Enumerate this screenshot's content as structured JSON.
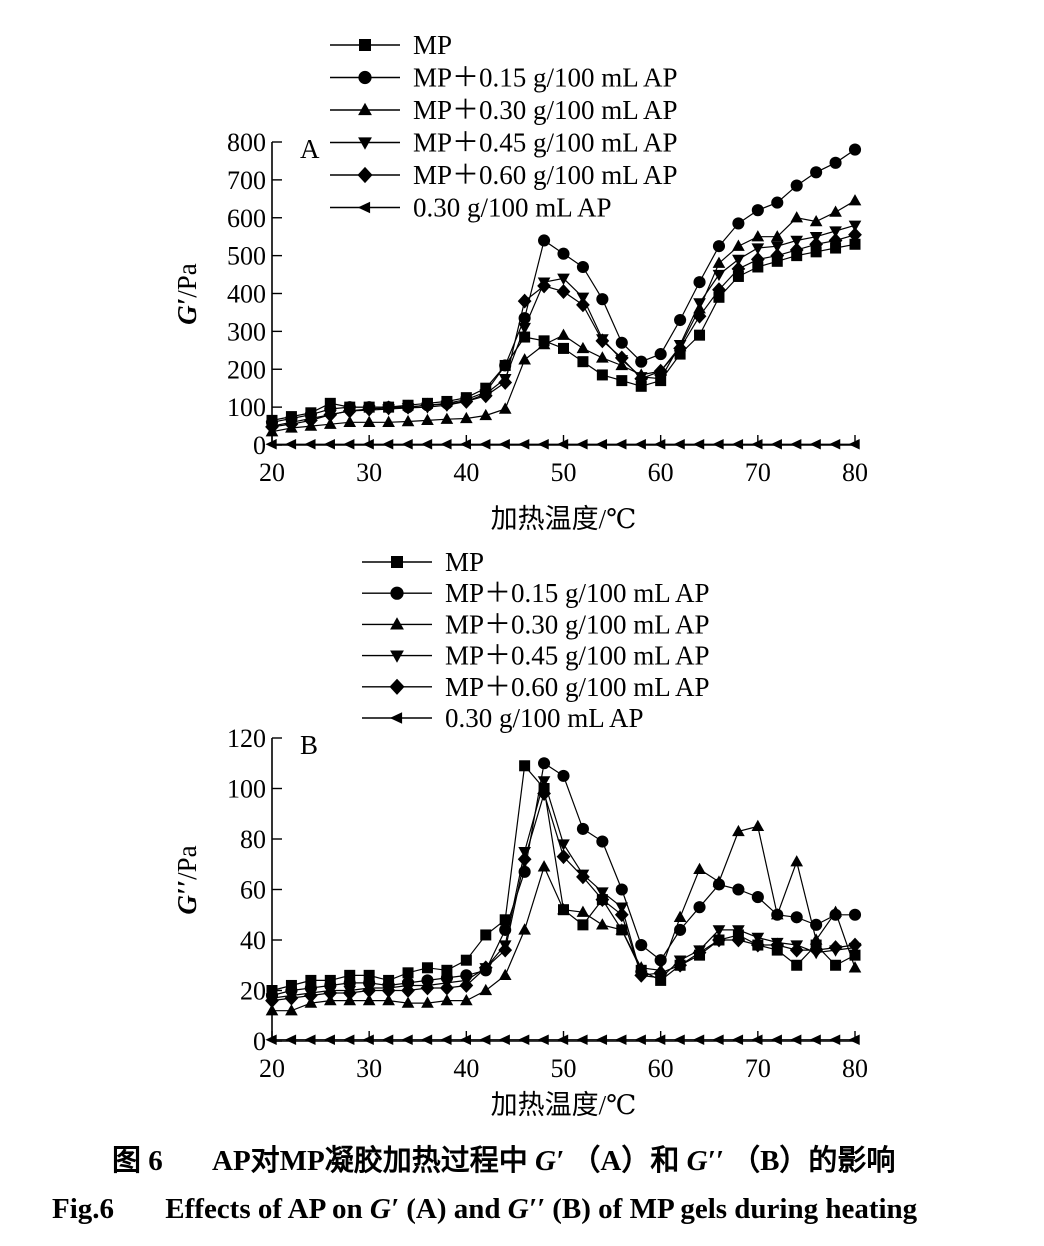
{
  "caption": {
    "cn_num": "图 6",
    "cn_a": "AP对MP凝胶加热过程中",
    "cn_sym1": "G′",
    "cn_b": "（A）和",
    "cn_sym2": "G′′",
    "cn_c": "（B）的影响",
    "en_num": "Fig.6",
    "en_a": "Effects of AP on ",
    "en_sym1": "G′",
    "en_b": " (A) and ",
    "en_sym2": "G′′",
    "en_c": " (B) of MP gels during heating"
  },
  "chart_data": [
    {
      "type": "line",
      "panel_label": "A",
      "xlabel": "加热温度/℃",
      "ylabel_symbol": "G′",
      "ylabel_unit": "/Pa",
      "xlim": [
        20,
        80
      ],
      "ylim": [
        0,
        800
      ],
      "xticks": [
        20,
        30,
        40,
        50,
        60,
        70,
        80
      ],
      "yticks": [
        0,
        100,
        200,
        300,
        400,
        500,
        600,
        700,
        800
      ],
      "legend_position": "top-center",
      "x": [
        20,
        22,
        24,
        26,
        28,
        30,
        32,
        34,
        36,
        38,
        40,
        42,
        44,
        46,
        48,
        50,
        52,
        54,
        56,
        58,
        60,
        62,
        64,
        66,
        68,
        70,
        72,
        74,
        76,
        78,
        80
      ],
      "series": [
        {
          "name": "MP",
          "marker": "square",
          "values": [
            65,
            75,
            85,
            110,
            100,
            100,
            100,
            105,
            110,
            115,
            125,
            150,
            210,
            285,
            275,
            255,
            220,
            185,
            170,
            155,
            170,
            240,
            290,
            390,
            445,
            470,
            485,
            500,
            510,
            520,
            530
          ]
        },
        {
          "name": "MP＋0.15 g/100 mL AP",
          "marker": "circle",
          "values": [
            60,
            70,
            80,
            95,
            100,
            100,
            100,
            100,
            105,
            110,
            120,
            140,
            210,
            335,
            540,
            505,
            470,
            385,
            270,
            220,
            240,
            330,
            430,
            525,
            585,
            620,
            640,
            685,
            720,
            745,
            780
          ]
        },
        {
          "name": "MP＋0.30 g/100 mL AP",
          "marker": "triangle-up",
          "values": [
            35,
            45,
            50,
            55,
            60,
            60,
            60,
            62,
            65,
            68,
            70,
            78,
            95,
            225,
            265,
            290,
            255,
            230,
            210,
            185,
            195,
            260,
            360,
            480,
            525,
            550,
            550,
            600,
            590,
            615,
            645
          ]
        },
        {
          "name": "MP＋0.45 g/100 mL AP",
          "marker": "triangle-down",
          "values": [
            50,
            60,
            70,
            80,
            90,
            92,
            95,
            98,
            100,
            105,
            115,
            135,
            175,
            310,
            430,
            440,
            390,
            280,
            225,
            180,
            175,
            265,
            375,
            450,
            490,
            520,
            525,
            540,
            550,
            565,
            580
          ]
        },
        {
          "name": "MP＋0.60 g/100 mL AP",
          "marker": "diamond",
          "values": [
            48,
            55,
            65,
            80,
            90,
            95,
            98,
            100,
            105,
            108,
            115,
            130,
            165,
            380,
            420,
            405,
            370,
            275,
            230,
            175,
            195,
            255,
            340,
            410,
            465,
            490,
            500,
            515,
            530,
            540,
            555
          ]
        },
        {
          "name": "0.30 g/100 mL AP",
          "marker": "triangle-left",
          "values": [
            2,
            2,
            2,
            2,
            2,
            2,
            2,
            2,
            2,
            2,
            2,
            2,
            2,
            2,
            2,
            2,
            2,
            2,
            2,
            2,
            2,
            2,
            2,
            2,
            2,
            2,
            2,
            2,
            2,
            2,
            2
          ]
        }
      ]
    },
    {
      "type": "line",
      "panel_label": "B",
      "xlabel": "加热温度/℃",
      "ylabel_symbol": "G′′",
      "ylabel_unit": "/Pa",
      "xlim": [
        20,
        80
      ],
      "ylim": [
        0,
        120
      ],
      "xticks": [
        20,
        30,
        40,
        50,
        60,
        70,
        80
      ],
      "yticks": [
        0,
        20,
        40,
        60,
        80,
        100,
        120
      ],
      "legend_position": "top-center",
      "x": [
        20,
        22,
        24,
        26,
        28,
        30,
        32,
        34,
        36,
        38,
        40,
        42,
        44,
        46,
        48,
        50,
        52,
        54,
        56,
        58,
        60,
        62,
        64,
        66,
        68,
        70,
        72,
        74,
        76,
        78,
        80
      ],
      "series": [
        {
          "name": "MP",
          "marker": "square",
          "values": [
            20,
            22,
            24,
            24,
            26,
            26,
            24,
            27,
            29,
            28,
            32,
            42,
            48,
            109,
            100,
            52,
            46,
            56,
            44,
            28,
            24,
            30,
            34,
            40,
            42,
            38,
            36,
            30,
            38,
            30,
            34
          ]
        },
        {
          "name": "MP＋0.15 g/100 mL AP",
          "marker": "circle",
          "values": [
            18,
            20,
            21,
            22,
            23,
            23,
            22,
            23,
            24,
            25,
            26,
            28,
            44,
            67,
            110,
            105,
            84,
            79,
            60,
            38,
            32,
            44,
            53,
            62,
            60,
            57,
            50,
            49,
            46,
            50,
            50
          ]
        },
        {
          "name": "MP＋0.30 g/100 mL AP",
          "marker": "triangle-up",
          "values": [
            12,
            12,
            15,
            16,
            16,
            16,
            16,
            15,
            15,
            16,
            16,
            20,
            26,
            44,
            69,
            52,
            51,
            46,
            44,
            29,
            28,
            49,
            68,
            63,
            83,
            85,
            50,
            71,
            40,
            51,
            29
          ]
        },
        {
          "name": "MP＋0.45 g/100 mL AP",
          "marker": "triangle-down",
          "values": [
            17,
            18,
            19,
            20,
            20,
            21,
            21,
            22,
            22,
            23,
            24,
            29,
            38,
            75,
            103,
            78,
            66,
            59,
            53,
            26,
            25,
            32,
            36,
            44,
            44,
            41,
            39,
            38,
            35,
            36,
            37
          ]
        },
        {
          "name": "MP＋0.60 g/100 mL AP",
          "marker": "diamond",
          "values": [
            16,
            17,
            18,
            19,
            19,
            20,
            20,
            20,
            21,
            21,
            22,
            29,
            36,
            72,
            98,
            73,
            65,
            56,
            50,
            26,
            27,
            30,
            35,
            40,
            40,
            38,
            38,
            36,
            36,
            37,
            38
          ]
        },
        {
          "name": "0.30 g/100 mL AP",
          "marker": "triangle-left",
          "values": [
            0.5,
            0.5,
            0.5,
            0.5,
            0.5,
            0.5,
            0.5,
            0.5,
            0.5,
            0.5,
            0.5,
            0.5,
            0.5,
            0.5,
            0.5,
            0.5,
            0.5,
            0.5,
            0.5,
            0.5,
            0.5,
            0.5,
            0.5,
            0.5,
            0.5,
            0.5,
            0.5,
            0.5,
            0.5,
            0.5,
            0.5
          ]
        }
      ]
    }
  ]
}
